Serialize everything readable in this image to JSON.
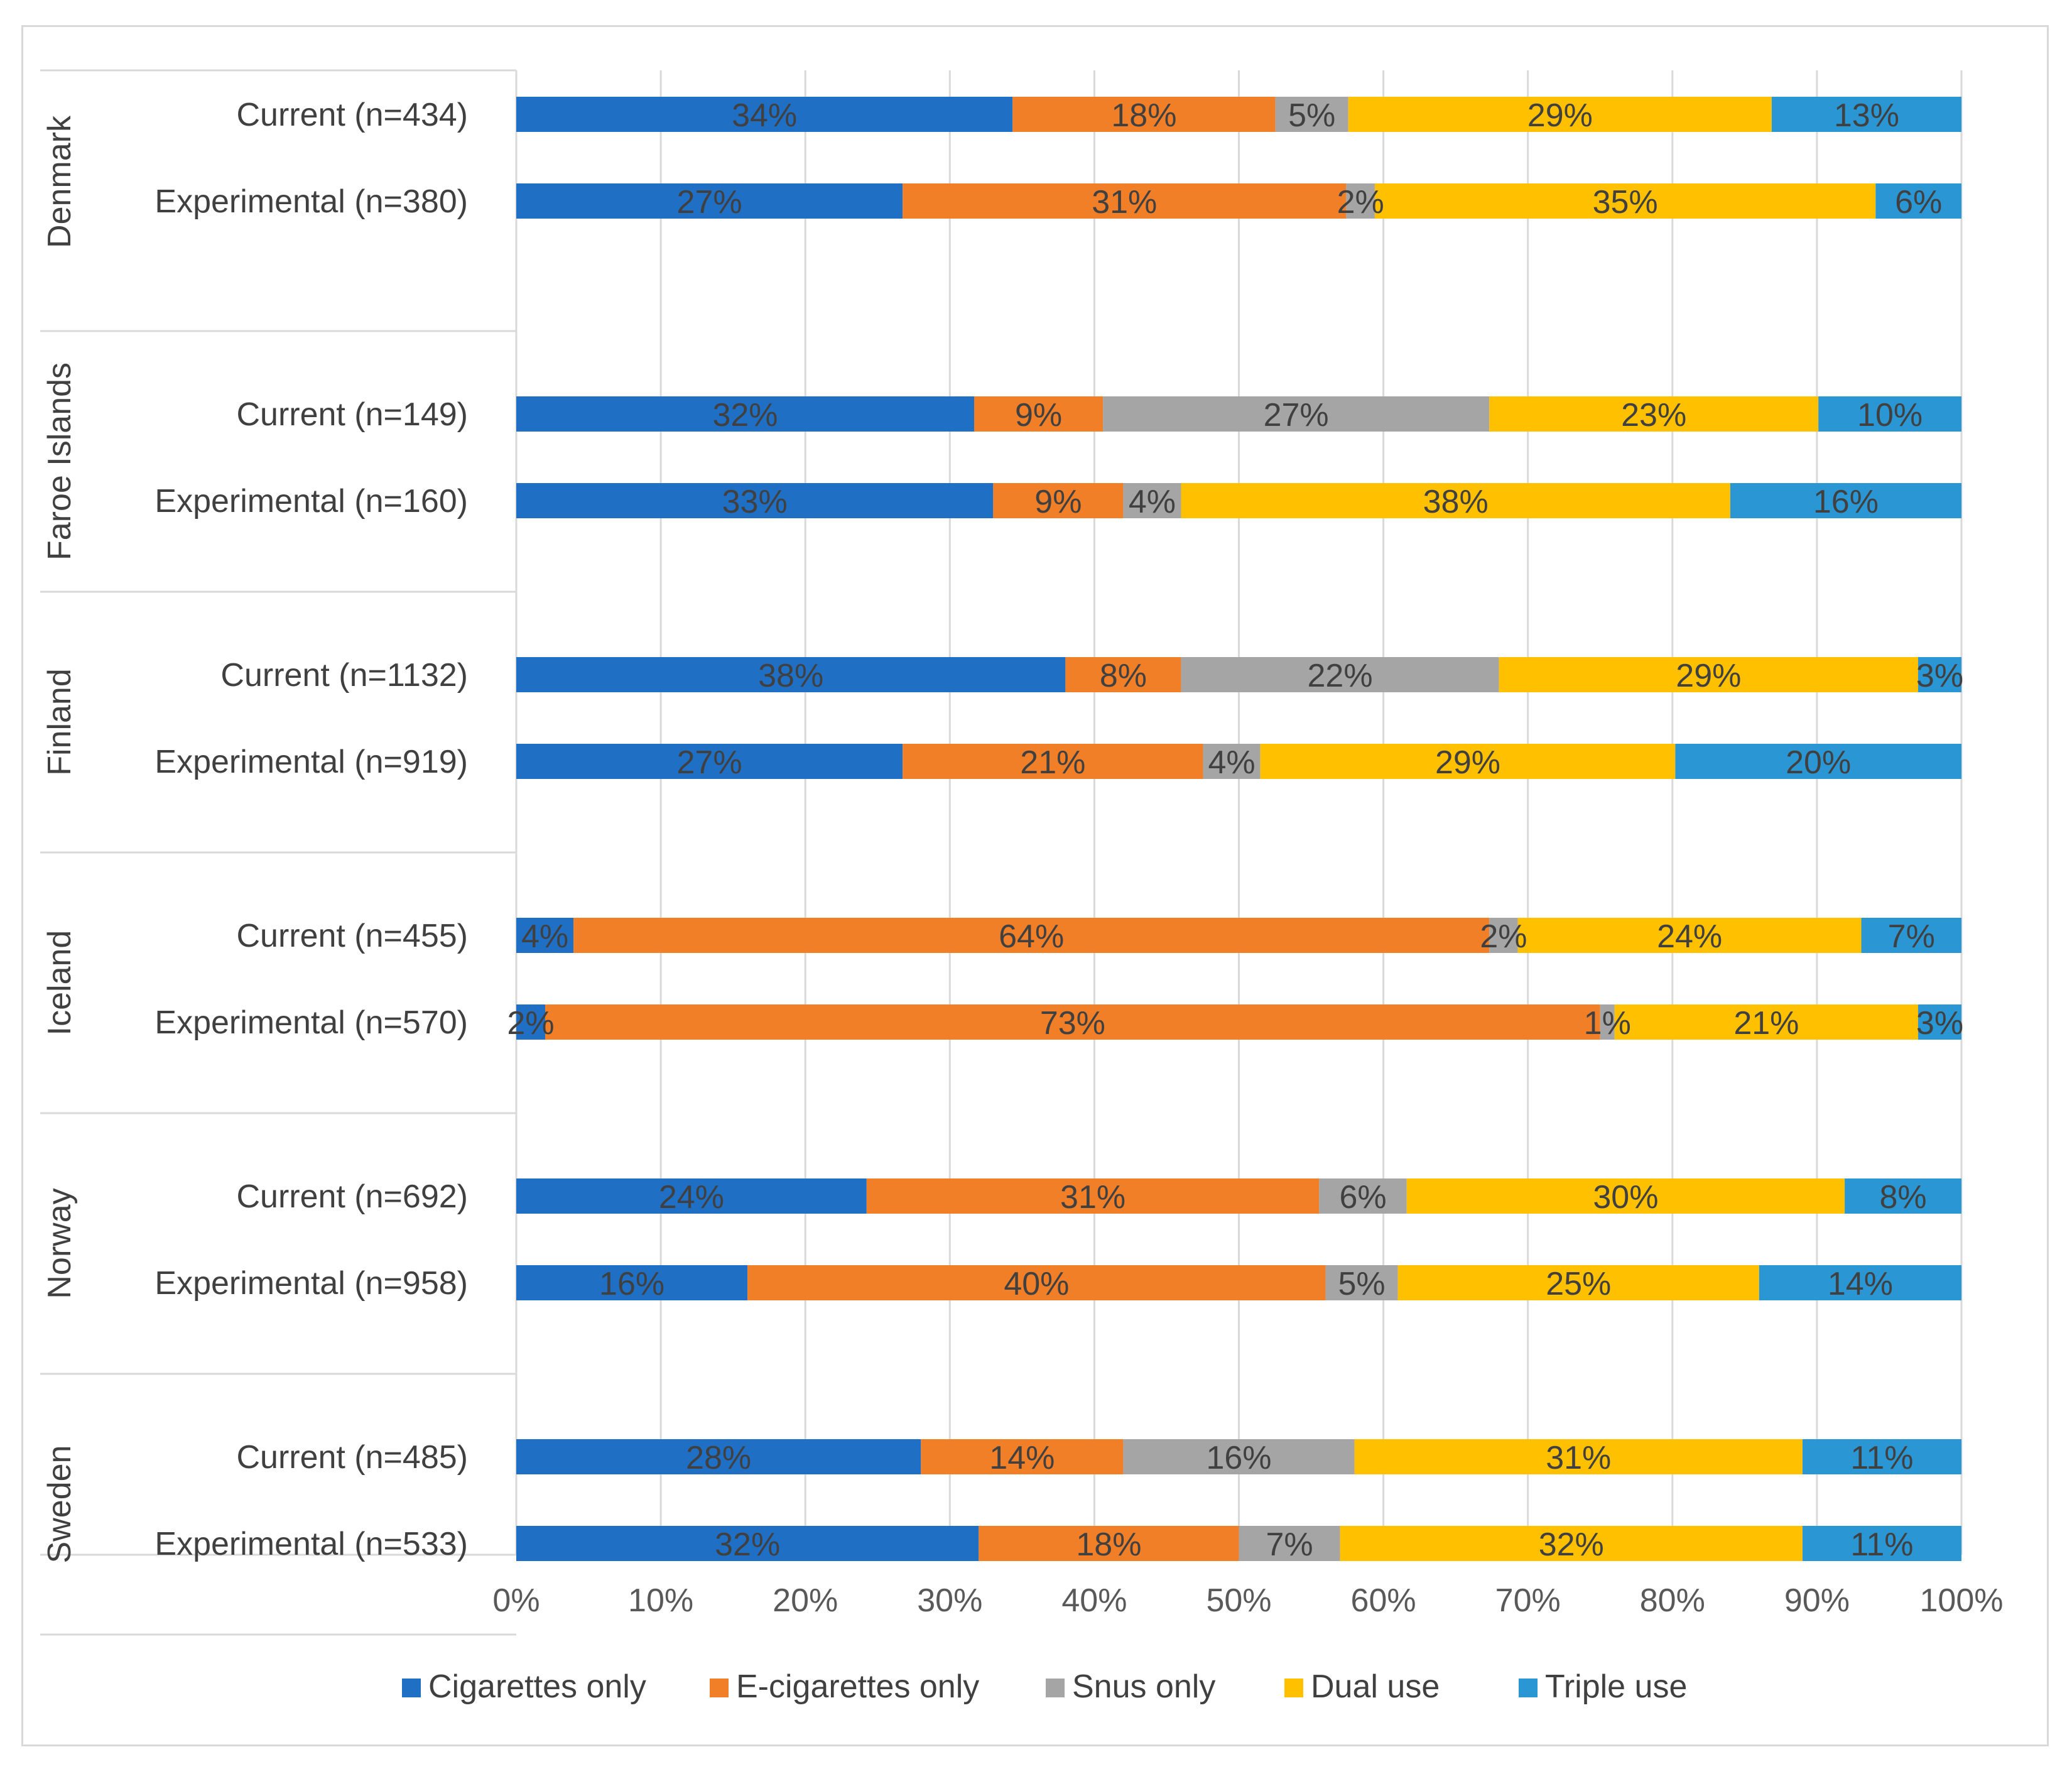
{
  "chart_data": {
    "type": "bar",
    "orientation": "horizontal",
    "stacked": "100%",
    "title": "",
    "xlabel": "",
    "ylabel": "",
    "xlim": [
      0,
      100
    ],
    "x_ticks": [
      "0%",
      "10%",
      "20%",
      "30%",
      "40%",
      "50%",
      "60%",
      "70%",
      "80%",
      "90%",
      "100%"
    ],
    "grid": true,
    "legend_position": "bottom",
    "series": [
      {
        "name": "Cigarettes only",
        "color": "#1f6fc5"
      },
      {
        "name": "E-cigarettes only",
        "color": "#f07f27"
      },
      {
        "name": "Snus only",
        "color": "#a5a5a5"
      },
      {
        "name": "Dual use",
        "color": "#ffc000"
      },
      {
        "name": "Triple use",
        "color": "#2a97d4"
      }
    ],
    "groups": [
      {
        "name": "Denmark",
        "rows": [
          {
            "label": "Current (n=434)",
            "values": [
              34,
              18,
              5,
              29,
              13
            ],
            "labels": [
              "34%",
              "18%",
              "5%",
              "29%",
              "13%"
            ]
          },
          {
            "label": "Experimental (n=380)",
            "values": [
              27,
              31,
              2,
              35,
              6
            ],
            "labels": [
              "27%",
              "31%",
              "2%",
              "35%",
              "6%"
            ]
          }
        ]
      },
      {
        "name": "Faroe Islands",
        "rows": [
          {
            "label": "Current (n=149)",
            "values": [
              32,
              9,
              27,
              23,
              10
            ],
            "labels": [
              "32%",
              "9%",
              "27%",
              "23%",
              "10%"
            ]
          },
          {
            "label": "Experimental (n=160)",
            "values": [
              33,
              9,
              4,
              38,
              16
            ],
            "labels": [
              "33%",
              "9%",
              "4%",
              "38%",
              "16%"
            ]
          }
        ]
      },
      {
        "name": "Finland",
        "rows": [
          {
            "label": "Current (n=1132)",
            "values": [
              38,
              8,
              22,
              29,
              3
            ],
            "labels": [
              "38%",
              "8%",
              "22%",
              "29%",
              "3%"
            ]
          },
          {
            "label": "Experimental (n=919)",
            "values": [
              27,
              21,
              4,
              29,
              20
            ],
            "labels": [
              "27%",
              "21%",
              "4%",
              "29%",
              "20%"
            ]
          }
        ]
      },
      {
        "name": "Iceland",
        "rows": [
          {
            "label": "Current (n=455)",
            "values": [
              4,
              64,
              2,
              24,
              7
            ],
            "labels": [
              "4%",
              "64%",
              "2%",
              "24%",
              "7%"
            ]
          },
          {
            "label": "Experimental  (n=570)",
            "values": [
              2,
              73,
              1,
              21,
              3
            ],
            "labels": [
              "2%",
              "73%",
              "1%",
              "21%",
              "3%"
            ]
          }
        ]
      },
      {
        "name": "Norway",
        "rows": [
          {
            "label": "Current (n=692)",
            "values": [
              24,
              31,
              6,
              30,
              8
            ],
            "labels": [
              "24%",
              "31%",
              "6%",
              "30%",
              "8%"
            ]
          },
          {
            "label": "Experimental  (n=958)",
            "values": [
              16,
              40,
              5,
              25,
              14
            ],
            "labels": [
              "16%",
              "40%",
              "5%",
              "25%",
              "14%"
            ]
          }
        ]
      },
      {
        "name": "Sweden",
        "rows": [
          {
            "label": "Current (n=485)",
            "values": [
              28,
              14,
              16,
              31,
              11
            ],
            "labels": [
              "28%",
              "14%",
              "16%",
              "31%",
              "11%"
            ]
          },
          {
            "label": "Experimental (n=533)",
            "values": [
              32,
              18,
              7,
              32,
              11
            ],
            "labels": [
              "32%",
              "18%",
              "7%",
              "32%",
              "11%"
            ]
          }
        ]
      }
    ]
  }
}
